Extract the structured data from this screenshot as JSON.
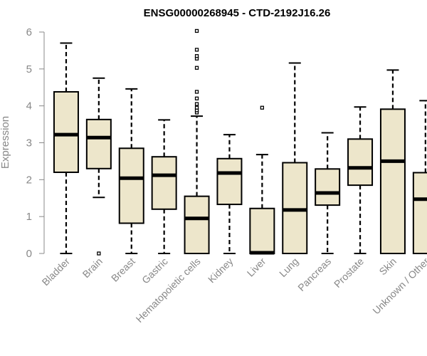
{
  "chart_data": {
    "type": "boxplot",
    "title": "ENSG00000268945 - CTD-2192J16.26",
    "ylabel": "Expression",
    "xlabel": "",
    "ylim": [
      0,
      6
    ],
    "yticks": [
      0,
      1,
      2,
      3,
      4,
      5,
      6
    ],
    "grid": false,
    "colors": {
      "box_fill": "#ede6cb",
      "stroke": "#000000",
      "axis_text": "#888888"
    },
    "categories": [
      "Bladder",
      "Brain",
      "Breast",
      "Gastric",
      "Hematopoietic cells",
      "Kidney",
      "Liver",
      "Lung",
      "Pancreas",
      "Prostate",
      "Skin",
      "Unknown / Other"
    ],
    "boxes": [
      {
        "category": "Bladder",
        "min": 0,
        "q1": 2.2,
        "median": 3.22,
        "q3": 4.38,
        "max": 5.7,
        "outliers": []
      },
      {
        "category": "Brain",
        "min": 1.52,
        "q1": 2.3,
        "median": 3.14,
        "q3": 3.63,
        "max": 4.75,
        "outliers": [
          0
        ]
      },
      {
        "category": "Breast",
        "min": 0,
        "q1": 0.82,
        "median": 2.04,
        "q3": 2.85,
        "max": 4.46,
        "outliers": []
      },
      {
        "category": "Gastric",
        "min": 0,
        "q1": 1.2,
        "median": 2.12,
        "q3": 2.62,
        "max": 3.62,
        "outliers": []
      },
      {
        "category": "Hematopoietic cells",
        "min": 0,
        "q1": 0,
        "median": 0.95,
        "q3": 1.55,
        "max": 3.72,
        "outliers": [
          3.82,
          3.88,
          3.95,
          4.05,
          4.2,
          4.38,
          5.03,
          5.28,
          5.35,
          5.52,
          6.03
        ]
      },
      {
        "category": "Kidney",
        "min": 0,
        "q1": 1.33,
        "median": 2.18,
        "q3": 2.57,
        "max": 3.22,
        "outliers": []
      },
      {
        "category": "Liver",
        "min": 0,
        "q1": 0,
        "median": 0.02,
        "q3": 1.22,
        "max": 2.68,
        "outliers": [
          3.95
        ]
      },
      {
        "category": "Lung",
        "min": 0,
        "q1": 0,
        "median": 1.18,
        "q3": 2.46,
        "max": 5.16,
        "outliers": []
      },
      {
        "category": "Pancreas",
        "min": 0,
        "q1": 1.31,
        "median": 1.64,
        "q3": 2.29,
        "max": 3.27,
        "outliers": []
      },
      {
        "category": "Prostate",
        "min": 0,
        "q1": 1.85,
        "median": 2.32,
        "q3": 3.1,
        "max": 3.97,
        "outliers": []
      },
      {
        "category": "Skin",
        "min": 0,
        "q1": 0,
        "median": 2.5,
        "q3": 3.91,
        "max": 4.97,
        "outliers": []
      },
      {
        "category": "Unknown / Other",
        "min": 0,
        "q1": 0,
        "median": 1.47,
        "q3": 2.19,
        "max": 4.14,
        "outliers": []
      }
    ]
  }
}
